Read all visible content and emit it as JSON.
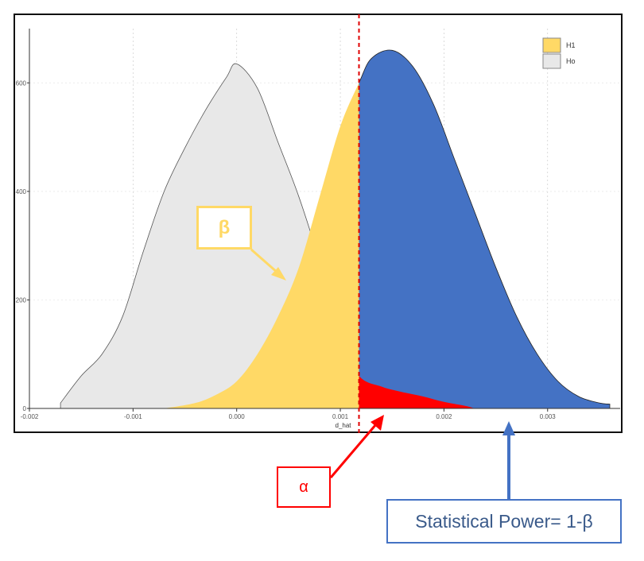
{
  "chart_data": {
    "type": "area",
    "xlabel": "d_hat",
    "ylabel": "",
    "xlim": [
      -0.002,
      0.0037
    ],
    "ylim": [
      0,
      700
    ],
    "x_ticks": [
      -0.002,
      -0.001,
      0.0,
      0.001,
      0.002,
      0.003
    ],
    "x_tick_labels": [
      "-0.002",
      "-0.001",
      "0.000",
      "0.001",
      "0.002",
      "0.003"
    ],
    "y_ticks": [
      0,
      200,
      400,
      600
    ],
    "y_tick_labels": [
      "0",
      "200",
      "400",
      "600"
    ],
    "critical_value": 0.00118,
    "series": [
      {
        "name": "H1",
        "color": "#FFD966",
        "x": [
          -0.0007,
          -0.0004,
          -0.0002,
          0.0,
          0.0002,
          0.0004,
          0.0006,
          0.0008,
          0.001,
          0.00118,
          0.0013,
          0.0015,
          0.0017,
          0.0019,
          0.0021,
          0.0023,
          0.0025,
          0.0027,
          0.0029,
          0.0031,
          0.0033,
          0.0035,
          0.0036
        ],
        "y": [
          0,
          10,
          25,
          50,
          100,
          170,
          260,
          390,
          520,
          600,
          645,
          660,
          630,
          560,
          460,
          360,
          260,
          170,
          100,
          50,
          22,
          10,
          8
        ]
      },
      {
        "name": "Ho",
        "color": "#E8E8E8",
        "x": [
          -0.0017,
          -0.0015,
          -0.0013,
          -0.0011,
          -0.0009,
          -0.0007,
          -0.0005,
          -0.0003,
          -0.0001,
          0.0,
          0.0002,
          0.0004,
          0.0006,
          0.0008,
          0.001,
          0.00118,
          0.0014,
          0.0016,
          0.0018,
          0.002,
          0.0022,
          0.0023
        ],
        "y": [
          10,
          60,
          100,
          170,
          290,
          400,
          480,
          550,
          610,
          635,
          590,
          490,
          390,
          270,
          130,
          60,
          40,
          30,
          22,
          12,
          5,
          0
        ]
      }
    ],
    "legend": {
      "position": "top-right",
      "entries": [
        "H1",
        "Ho"
      ]
    },
    "regions": [
      {
        "label": "β",
        "color": "#FFD966"
      },
      {
        "label": "α",
        "color": "#ff0000"
      },
      {
        "label": "Statistical Power= 1-β",
        "color": "#4472C4"
      }
    ],
    "colors": {
      "power": "#4472C4",
      "alpha": "#ff0000",
      "beta": "#FFD966",
      "h0": "#E8E8E8"
    }
  }
}
